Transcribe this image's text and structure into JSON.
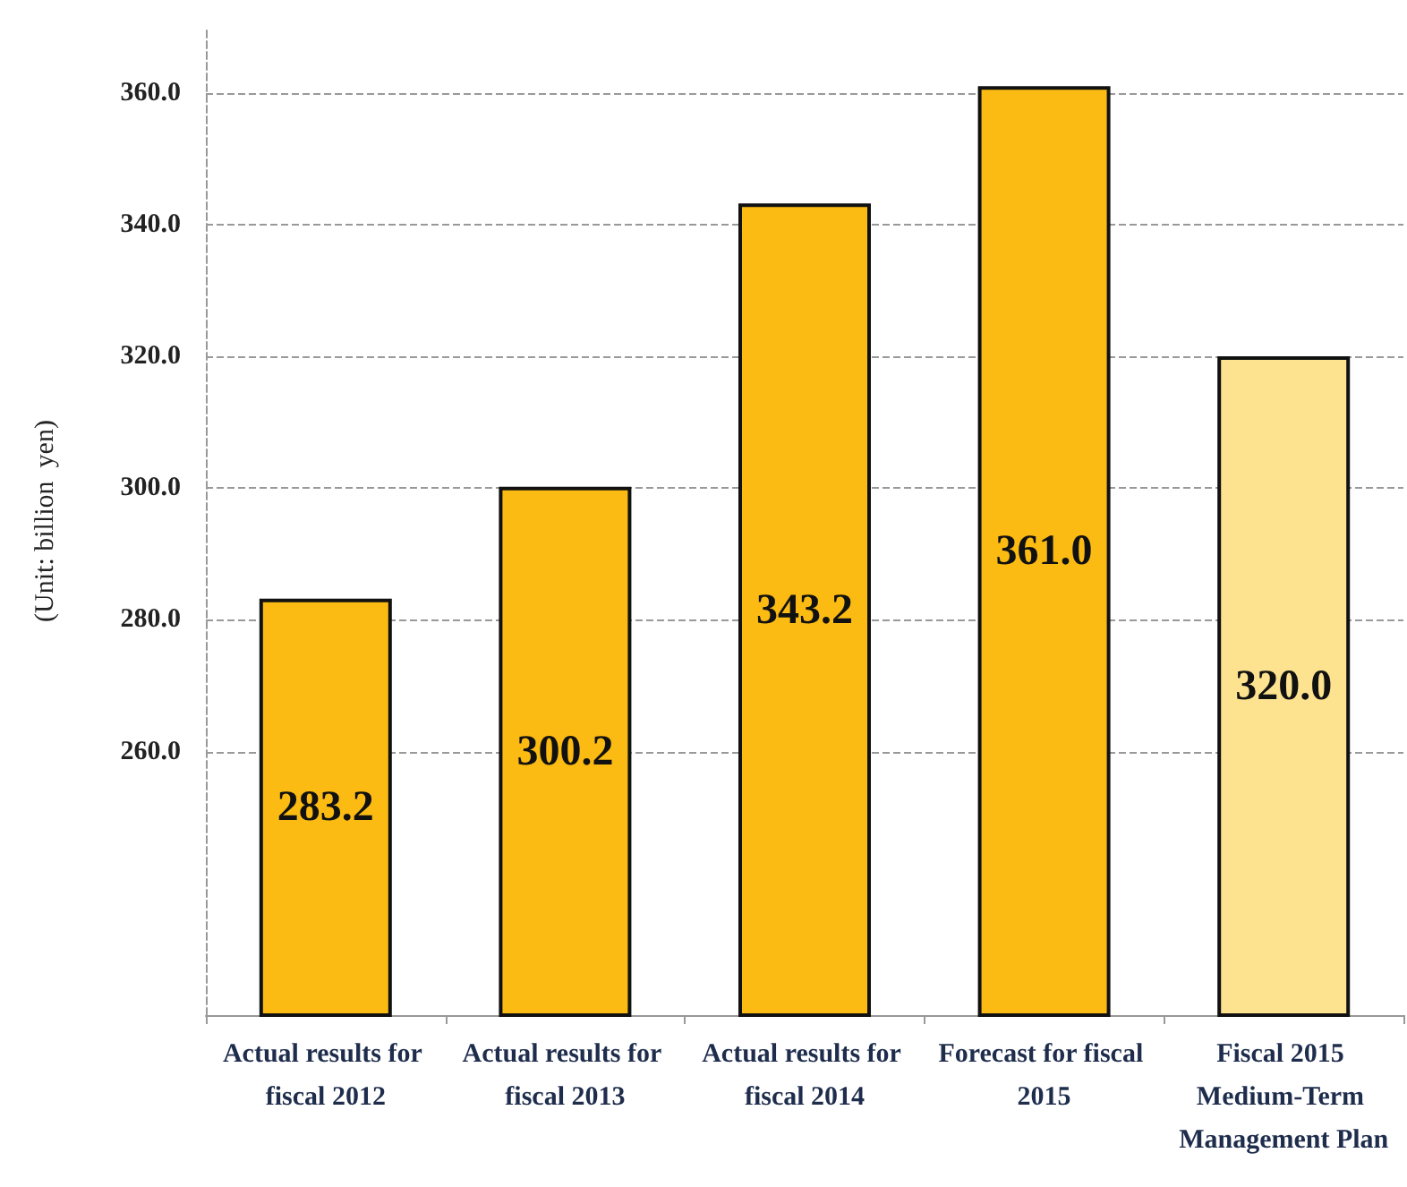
{
  "chart_data": {
    "type": "bar",
    "ylabel": "(Unit: billion  yen)",
    "categories": [
      "Actual results for fiscal 2012",
      "Actual results for fiscal 2013",
      "Actual results for fiscal 2014",
      "Forecast for fiscal 2015",
      "Fiscal 2015 Medium-Term Management Plan"
    ],
    "values": [
      283.2,
      300.2,
      343.2,
      361.0,
      320.0
    ],
    "colors": [
      "#fbbb12",
      "#fbbb12",
      "#fbbb12",
      "#fbbb12",
      "#fde28f"
    ],
    "ylim": [
      220,
      370
    ],
    "yticks": [
      {
        "value": 260,
        "label": "260.0"
      },
      {
        "value": 280,
        "label": "280.0"
      },
      {
        "value": 300,
        "label": "300.0"
      },
      {
        "value": 320,
        "label": "320.0"
      },
      {
        "value": 340,
        "label": "340.0"
      },
      {
        "value": 360,
        "label": "360.0"
      }
    ],
    "value_labels": [
      "283.2",
      "300.2",
      "343.2",
      "361.0",
      "320.0"
    ],
    "grid": "y"
  }
}
